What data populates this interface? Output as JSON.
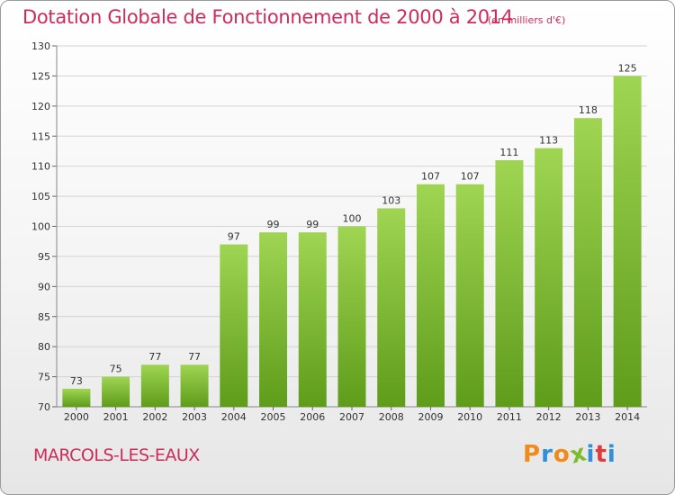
{
  "header": {
    "title": "Dotation Globale de Fonctionnement de 2000 à 2014",
    "subtitle": "(en milliers d'€)"
  },
  "footer": {
    "commune": "MARCOLS-LES-EAUX",
    "logo_text": "Proxiti"
  },
  "colors": {
    "title": "#cc2c5c",
    "bar_light": "#9fd552",
    "bar_dark": "#5e9c1a",
    "grid": "#d3d3d3",
    "logo": [
      "#f08a1c",
      "#2f8fd8",
      "#f08a1c",
      "#7dbb2a",
      "#2f8fd8",
      "#e03a3a",
      "#2f8fd8"
    ]
  },
  "chart_data": {
    "type": "bar",
    "title": "Dotation Globale de Fonctionnement de 2000 à 2014",
    "xlabel": "",
    "ylabel": "",
    "categories": [
      "2000",
      "2001",
      "2002",
      "2003",
      "2004",
      "2005",
      "2006",
      "2007",
      "2008",
      "2009",
      "2010",
      "2011",
      "2012",
      "2013",
      "2014"
    ],
    "values": [
      73,
      75,
      77,
      77,
      97,
      99,
      99,
      100,
      103,
      107,
      107,
      111,
      113,
      118,
      125
    ],
    "ylim": [
      70,
      130
    ],
    "yticks": [
      70,
      75,
      80,
      85,
      90,
      95,
      100,
      105,
      110,
      115,
      120,
      125,
      130
    ],
    "grid": true,
    "data_labels": true
  }
}
